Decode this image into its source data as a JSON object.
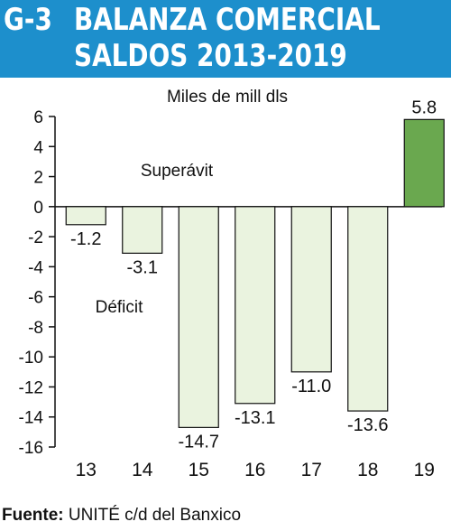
{
  "header": {
    "code": "G-3",
    "title_line1": "BALANZA COMERCIAL",
    "title_line2": "SALDOS 2013-2019"
  },
  "chart_data": {
    "type": "bar",
    "title": "BALANZA COMERCIAL SALDOS 2013-2019",
    "unit_label": "Miles de mill dls",
    "categories": [
      "13",
      "14",
      "15",
      "16",
      "17",
      "18",
      "19"
    ],
    "values": [
      -1.2,
      -3.1,
      -14.7,
      -13.1,
      -11.0,
      -13.6,
      5.8
    ],
    "value_labels": [
      "-1.2",
      "-3.1",
      "-14.7",
      "-13.1",
      "-11.0",
      "-13.6",
      "5.8"
    ],
    "ylim": [
      -16,
      6
    ],
    "yticks": [
      "6",
      "4",
      "2",
      "0",
      "-2",
      "-4",
      "-6",
      "-8",
      "-10",
      "-12",
      "-14",
      "-16"
    ],
    "ytick_values": [
      6,
      4,
      2,
      0,
      -2,
      -4,
      -6,
      -8,
      -10,
      -12,
      -14,
      -16
    ],
    "annotations": {
      "surplus": "Superávit",
      "deficit": "Déficit"
    },
    "colors": {
      "negative_fill": "#eaf3df",
      "positive_fill": "#6aa84f",
      "stroke": "#111111"
    }
  },
  "source": {
    "label": "Fuente:",
    "text": " UNITÉ c/d del Banxico"
  }
}
